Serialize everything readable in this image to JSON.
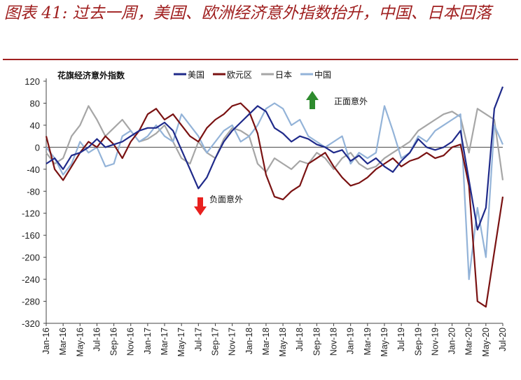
{
  "title": "图表 41: 过去一周，美国、欧洲经济意外指数抬升，中国、日本回落",
  "chart_data": {
    "type": "line",
    "inner_title": "花旗经济意外指数",
    "ylim": [
      -320,
      120
    ],
    "yticks": [
      120,
      80,
      40,
      0,
      -40,
      -80,
      -120,
      -160,
      -200,
      -240,
      -280,
      -320
    ],
    "xlim": [
      "2016-01",
      "2020-07"
    ],
    "xticks": [
      "Jan-16",
      "Mar-16",
      "May-16",
      "Jul-16",
      "Sep-16",
      "Nov-16",
      "Jan-17",
      "Mar-17",
      "May-17",
      "Jul-17",
      "Sep-17",
      "Nov-17",
      "Jan-18",
      "Mar-18",
      "May-18",
      "Jul-18",
      "Sep-18",
      "Nov-18",
      "Jan-19",
      "Mar-19",
      "May-19",
      "Jul-19",
      "Sep-19",
      "Nov-19",
      "Jan-20",
      "Mar-20",
      "May-20",
      "Jul-20"
    ],
    "legend_position": "top",
    "annotations": {
      "positive": "正面意外",
      "negative": "负面意外"
    },
    "colors": {
      "title": "#a02020",
      "up_arrow": "#2e8b2e",
      "down_arrow": "#e8201e"
    },
    "series": [
      {
        "name": "美国",
        "color": "#1f2a8a",
        "x": [
          "2016-01",
          "2016-02",
          "2016-03",
          "2016-04",
          "2016-05",
          "2016-06",
          "2016-07",
          "2016-08",
          "2016-09",
          "2016-10",
          "2016-11",
          "2016-12",
          "2017-01",
          "2017-02",
          "2017-03",
          "2017-04",
          "2017-05",
          "2017-06",
          "2017-07",
          "2017-08",
          "2017-09",
          "2017-10",
          "2017-11",
          "2017-12",
          "2018-01",
          "2018-02",
          "2018-03",
          "2018-04",
          "2018-05",
          "2018-06",
          "2018-07",
          "2018-08",
          "2018-09",
          "2018-10",
          "2018-11",
          "2018-12",
          "2019-01",
          "2019-02",
          "2019-03",
          "2019-04",
          "2019-05",
          "2019-06",
          "2019-07",
          "2019-08",
          "2019-09",
          "2019-10",
          "2019-11",
          "2019-12",
          "2020-01",
          "2020-02",
          "2020-03",
          "2020-04",
          "2020-05",
          "2020-06",
          "2020-07"
        ],
        "y": [
          -30,
          -20,
          -40,
          -15,
          -10,
          0,
          15,
          0,
          5,
          10,
          20,
          30,
          35,
          35,
          45,
          30,
          -5,
          -40,
          -75,
          -55,
          -20,
          10,
          30,
          45,
          60,
          75,
          65,
          35,
          25,
          10,
          20,
          15,
          5,
          0,
          -10,
          -5,
          -25,
          -15,
          -30,
          -20,
          -35,
          -45,
          -25,
          -10,
          15,
          0,
          -5,
          0,
          10,
          30,
          -60,
          -150,
          -110,
          70,
          110
        ]
      },
      {
        "name": "欧元区",
        "color": "#7a1212",
        "x": [
          "2016-01",
          "2016-02",
          "2016-03",
          "2016-04",
          "2016-05",
          "2016-06",
          "2016-07",
          "2016-08",
          "2016-09",
          "2016-10",
          "2016-11",
          "2016-12",
          "2017-01",
          "2017-02",
          "2017-03",
          "2017-04",
          "2017-05",
          "2017-06",
          "2017-07",
          "2017-08",
          "2017-09",
          "2017-10",
          "2017-11",
          "2017-12",
          "2018-01",
          "2018-02",
          "2018-03",
          "2018-04",
          "2018-05",
          "2018-06",
          "2018-07",
          "2018-08",
          "2018-09",
          "2018-10",
          "2018-11",
          "2018-12",
          "2019-01",
          "2019-02",
          "2019-03",
          "2019-04",
          "2019-05",
          "2019-06",
          "2019-07",
          "2019-08",
          "2019-09",
          "2019-10",
          "2019-11",
          "2019-12",
          "2020-01",
          "2020-02",
          "2020-03",
          "2020-04",
          "2020-05",
          "2020-06",
          "2020-07"
        ],
        "y": [
          20,
          -40,
          -60,
          -35,
          -10,
          10,
          0,
          20,
          5,
          -20,
          10,
          30,
          60,
          70,
          50,
          60,
          40,
          20,
          10,
          35,
          50,
          60,
          75,
          80,
          65,
          25,
          -50,
          -90,
          -95,
          -80,
          -70,
          -30,
          -20,
          -10,
          -35,
          -55,
          -70,
          -65,
          -55,
          -40,
          -30,
          -20,
          -35,
          -25,
          -20,
          -10,
          -20,
          -15,
          0,
          5,
          -70,
          -280,
          -290,
          -190,
          -90
        ]
      },
      {
        "name": "日本",
        "color": "#a6a6a6",
        "x": [
          "2016-01",
          "2016-02",
          "2016-03",
          "2016-04",
          "2016-05",
          "2016-06",
          "2016-07",
          "2016-08",
          "2016-09",
          "2016-10",
          "2016-11",
          "2016-12",
          "2017-01",
          "2017-02",
          "2017-03",
          "2017-04",
          "2017-05",
          "2017-06",
          "2017-07",
          "2017-08",
          "2017-09",
          "2017-10",
          "2017-11",
          "2017-12",
          "2018-01",
          "2018-02",
          "2018-03",
          "2018-04",
          "2018-05",
          "2018-06",
          "2018-07",
          "2018-08",
          "2018-09",
          "2018-10",
          "2018-11",
          "2018-12",
          "2019-01",
          "2019-02",
          "2019-03",
          "2019-04",
          "2019-05",
          "2019-06",
          "2019-07",
          "2019-08",
          "2019-09",
          "2019-10",
          "2019-11",
          "2019-12",
          "2020-01",
          "2020-02",
          "2020-03",
          "2020-04",
          "2020-05",
          "2020-06",
          "2020-07"
        ],
        "y": [
          -10,
          -30,
          -20,
          20,
          40,
          75,
          50,
          20,
          35,
          50,
          30,
          10,
          15,
          25,
          40,
          10,
          -20,
          -30,
          10,
          -10,
          -20,
          15,
          35,
          30,
          20,
          -30,
          -45,
          -20,
          -30,
          -40,
          -25,
          -30,
          -10,
          -20,
          -40,
          -20,
          -10,
          -30,
          -40,
          -35,
          -20,
          -10,
          0,
          10,
          30,
          40,
          50,
          60,
          65,
          55,
          -10,
          70,
          60,
          50,
          -60
        ]
      },
      {
        "name": "中国",
        "color": "#93b3d8",
        "x": [
          "2016-01",
          "2016-02",
          "2016-03",
          "2016-04",
          "2016-05",
          "2016-06",
          "2016-07",
          "2016-08",
          "2016-09",
          "2016-10",
          "2016-11",
          "2016-12",
          "2017-01",
          "2017-02",
          "2017-03",
          "2017-04",
          "2017-05",
          "2017-06",
          "2017-07",
          "2017-08",
          "2017-09",
          "2017-10",
          "2017-11",
          "2017-12",
          "2018-01",
          "2018-02",
          "2018-03",
          "2018-04",
          "2018-05",
          "2018-06",
          "2018-07",
          "2018-08",
          "2018-09",
          "2018-10",
          "2018-11",
          "2018-12",
          "2019-01",
          "2019-02",
          "2019-03",
          "2019-04",
          "2019-05",
          "2019-06",
          "2019-07",
          "2019-08",
          "2019-09",
          "2019-10",
          "2019-11",
          "2019-12",
          "2020-01",
          "2020-02",
          "2020-03",
          "2020-04",
          "2020-05",
          "2020-06",
          "2020-07"
        ],
        "y": [
          0,
          -20,
          -50,
          -30,
          10,
          -10,
          0,
          -35,
          -30,
          20,
          30,
          10,
          20,
          40,
          20,
          10,
          60,
          40,
          20,
          -10,
          10,
          30,
          40,
          10,
          20,
          40,
          70,
          80,
          70,
          40,
          50,
          20,
          10,
          0,
          10,
          20,
          -30,
          -10,
          -20,
          -10,
          75,
          30,
          -20,
          -10,
          20,
          10,
          30,
          40,
          50,
          60,
          -240,
          -110,
          -200,
          40,
          5
        ]
      }
    ]
  }
}
